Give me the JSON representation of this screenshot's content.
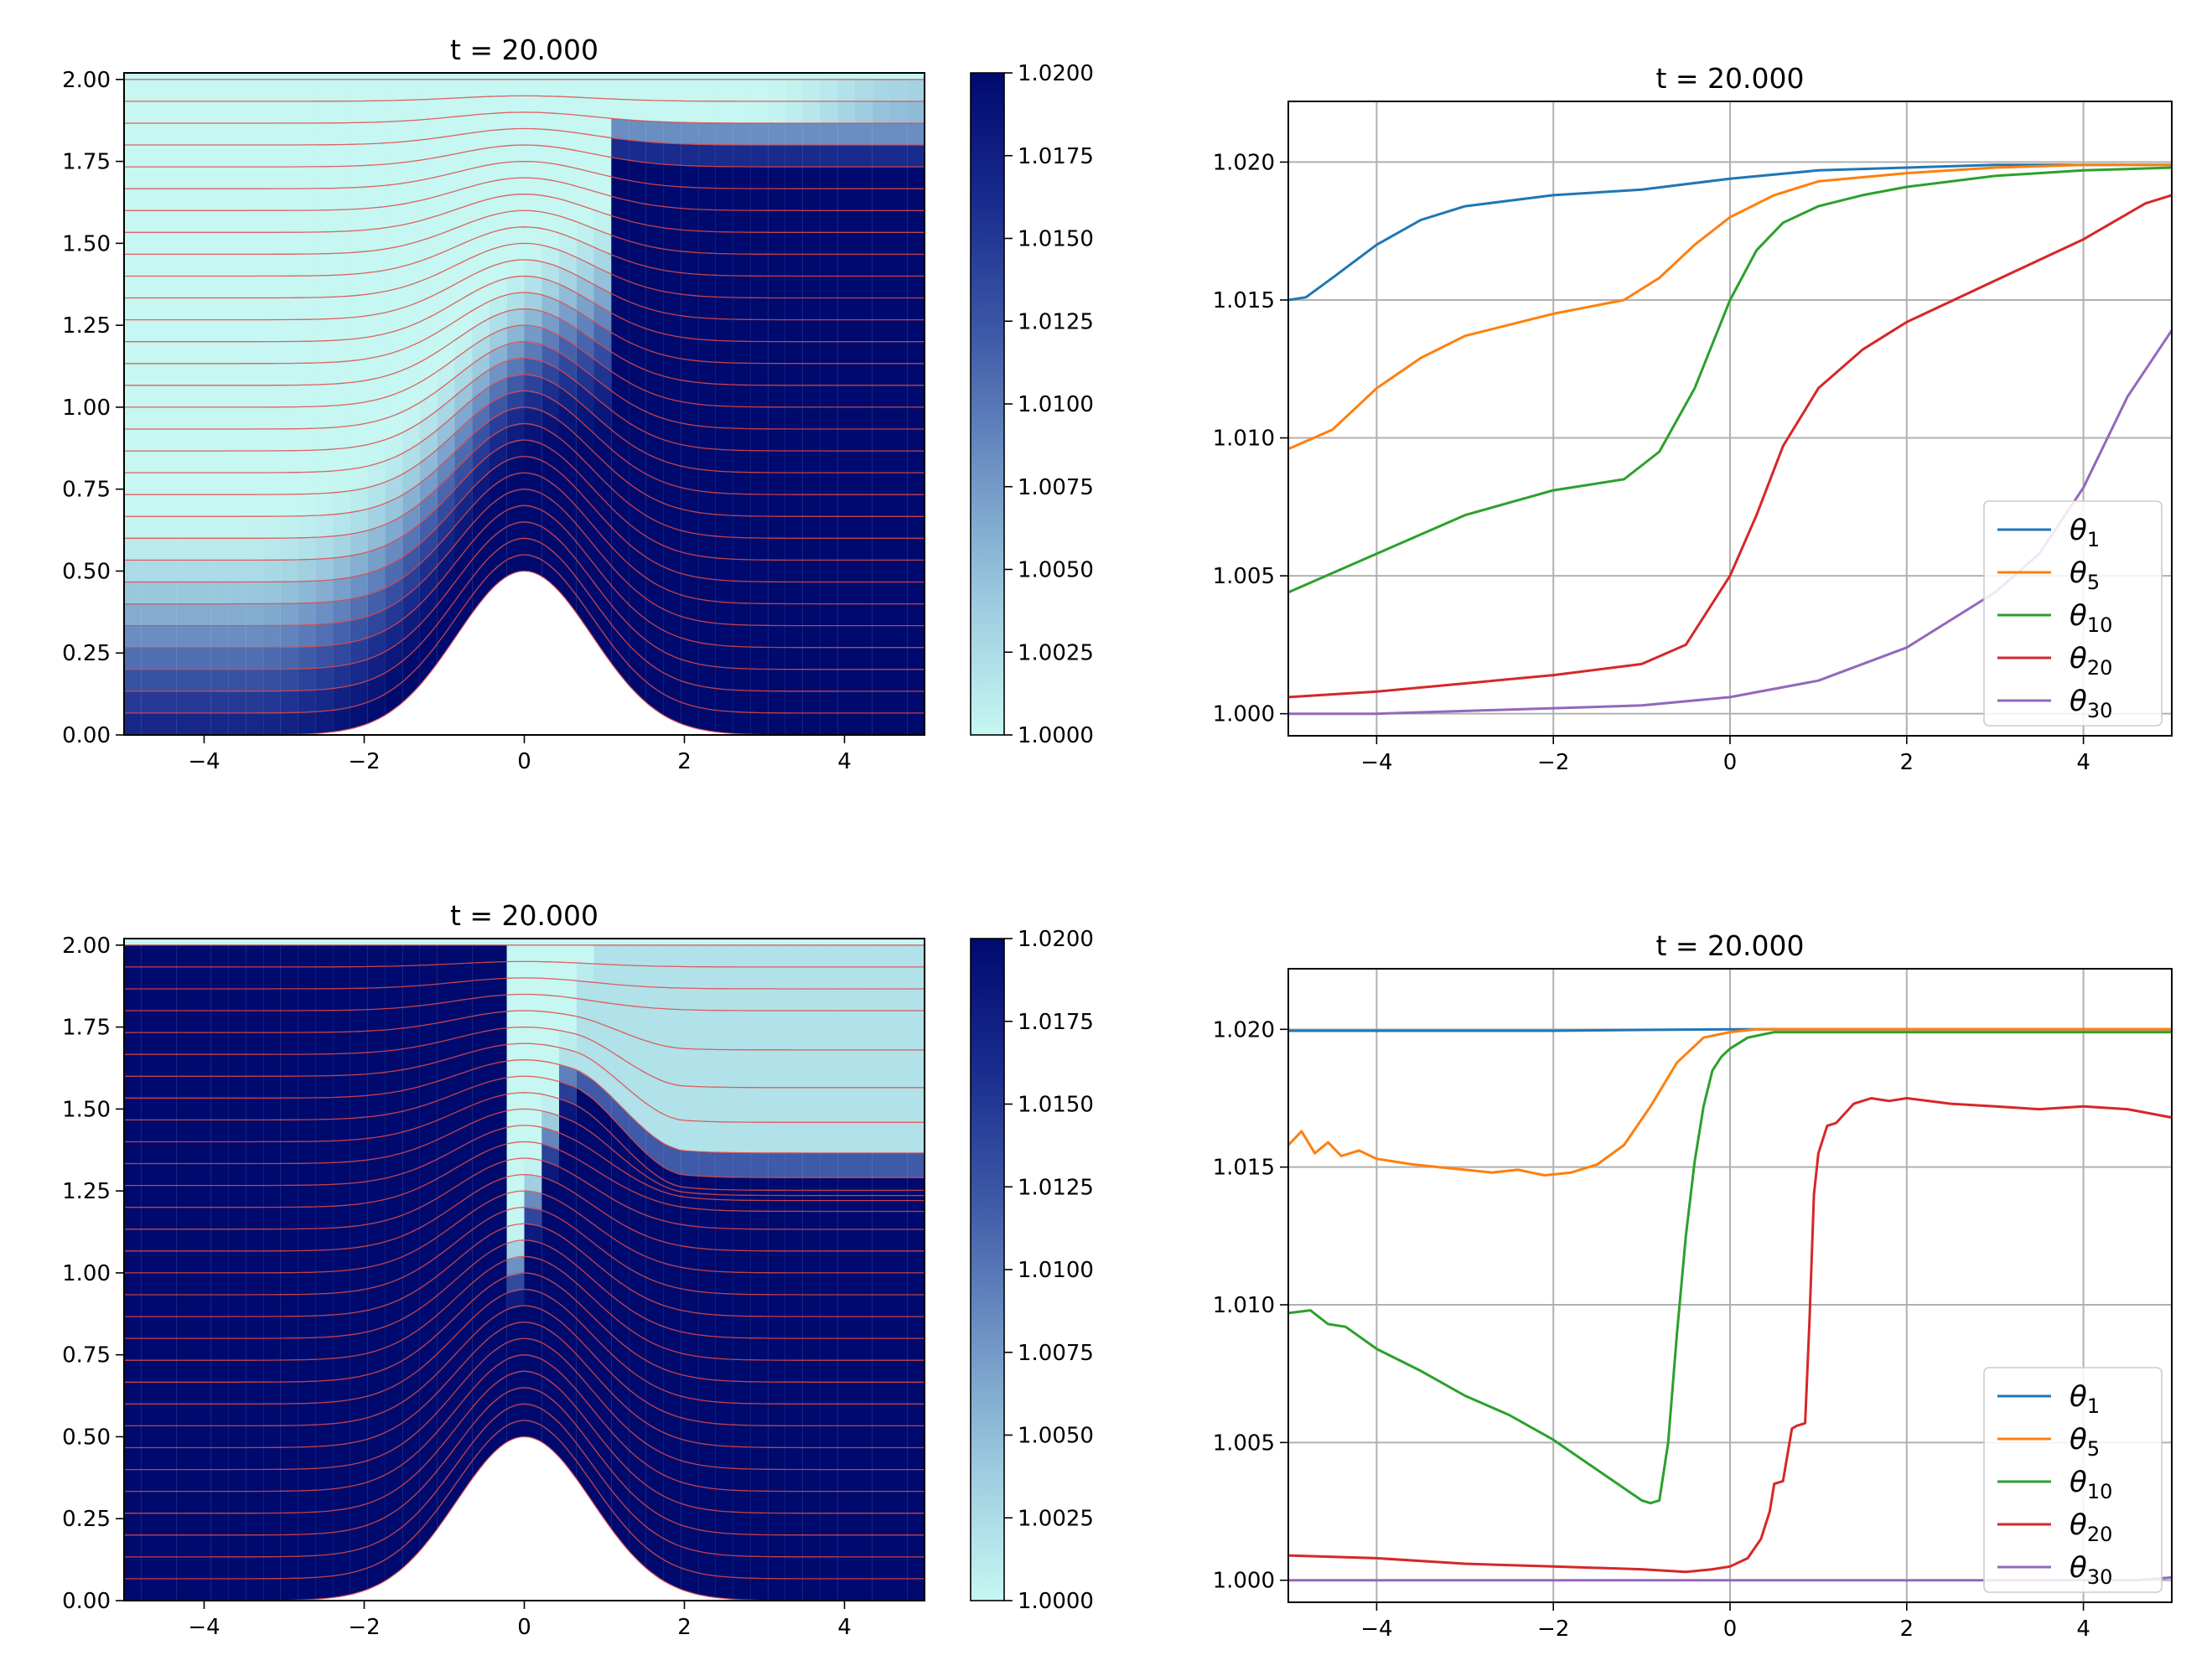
{
  "figure": {
    "layout": "2x2 grid"
  },
  "chart_data": [
    {
      "id": "field-top",
      "type": "heatmap",
      "title": "t = 20.000",
      "xlim": [
        -5,
        5
      ],
      "ylim": [
        0,
        2.02
      ],
      "xticks": [
        "−4",
        "−2",
        "0",
        "2",
        "4"
      ],
      "xtick_values": [
        -4,
        -2,
        0,
        2,
        4
      ],
      "yticks": [
        "0.00",
        "0.25",
        "0.50",
        "0.75",
        "1.00",
        "1.25",
        "1.50",
        "1.75",
        "2.00"
      ],
      "ytick_values": [
        0,
        0.25,
        0.5,
        0.75,
        1.0,
        1.25,
        1.5,
        1.75,
        2.0
      ],
      "colorbar": {
        "min": 1.0,
        "max": 1.02,
        "ticks": [
          "1.0000",
          "1.0025",
          "1.0050",
          "1.0075",
          "1.0100",
          "1.0125",
          "1.0150",
          "1.0175",
          "1.0200"
        ],
        "tick_values": [
          1.0,
          1.0025,
          1.005,
          1.0075,
          1.01,
          1.0125,
          1.015,
          1.0175,
          1.02
        ],
        "colormap": [
          "#c6f7f2",
          "#9ccbdf",
          "#6e93c4",
          "#3f5aa8",
          "#1a2d8e",
          "#000a6e"
        ]
      },
      "bump": {
        "height": 0.5,
        "width": 1.0
      },
      "layers": 30,
      "streamline_color": "#e04848",
      "ground_color": "#ffffff"
    },
    {
      "id": "profiles-top",
      "type": "line",
      "title": "t = 20.000",
      "xlim": [
        -5,
        5
      ],
      "ylim": [
        0.9992,
        1.0222
      ],
      "xticks": [
        "−4",
        "−2",
        "0",
        "2",
        "4"
      ],
      "xtick_values": [
        -4,
        -2,
        0,
        2,
        4
      ],
      "yticks": [
        "1.000",
        "1.005",
        "1.010",
        "1.015",
        "1.020"
      ],
      "ytick_values": [
        1.0,
        1.005,
        1.01,
        1.015,
        1.02
      ],
      "grid": true,
      "legend": {
        "position": "lower-right",
        "entries": [
          "θ",
          "θ",
          "θ",
          "θ",
          "θ"
        ],
        "subscripts": [
          "1",
          "5",
          "10",
          "20",
          "30"
        ]
      },
      "series": [
        {
          "name": "θ1",
          "color": "#1f77b4",
          "x": [
            -5,
            -4.8,
            -4.5,
            -4,
            -3.5,
            -3,
            -2,
            -1,
            0,
            1,
            2,
            3,
            4,
            5
          ],
          "y": [
            1.015,
            1.0151,
            1.0158,
            1.017,
            1.0179,
            1.0184,
            1.0188,
            1.019,
            1.0194,
            1.0197,
            1.0198,
            1.0199,
            1.0199,
            1.0199
          ]
        },
        {
          "name": "θ5",
          "color": "#ff7f0e",
          "x": [
            -5,
            -4.5,
            -4,
            -3.5,
            -3,
            -2,
            -1.2,
            -0.8,
            -0.4,
            0,
            0.5,
            1,
            2,
            3,
            4,
            5
          ],
          "y": [
            1.0096,
            1.0103,
            1.0118,
            1.0129,
            1.0137,
            1.0145,
            1.015,
            1.0158,
            1.017,
            1.018,
            1.0188,
            1.0193,
            1.0196,
            1.0198,
            1.0199,
            1.0199
          ]
        },
        {
          "name": "θ10",
          "color": "#2ca02c",
          "x": [
            -5,
            -4,
            -3,
            -2,
            -1.2,
            -0.8,
            -0.4,
            0,
            0.3,
            0.6,
            1,
            1.5,
            2,
            3,
            4,
            5
          ],
          "y": [
            1.0044,
            1.0058,
            1.0072,
            1.0081,
            1.0085,
            1.0095,
            1.0118,
            1.015,
            1.0168,
            1.0178,
            1.0184,
            1.0188,
            1.0191,
            1.0195,
            1.0197,
            1.0198
          ]
        },
        {
          "name": "θ20",
          "color": "#d62728",
          "x": [
            -5,
            -4,
            -3,
            -2,
            -1,
            -0.5,
            0,
            0.3,
            0.6,
            1,
            1.5,
            2,
            3,
            4,
            4.7,
            5
          ],
          "y": [
            1.0006,
            1.0008,
            1.0011,
            1.0014,
            1.0018,
            1.0025,
            1.005,
            1.0072,
            1.0097,
            1.0118,
            1.0132,
            1.0142,
            1.0157,
            1.0172,
            1.0185,
            1.0188
          ]
        },
        {
          "name": "θ30",
          "color": "#9467bd",
          "x": [
            -5,
            -4,
            -3,
            -2,
            -1,
            0,
            1,
            2,
            3,
            3.5,
            4,
            4.5,
            5
          ],
          "y": [
            1.0,
            1.0,
            1.0001,
            1.0002,
            1.0003,
            1.0006,
            1.0012,
            1.0024,
            1.0044,
            1.0058,
            1.0082,
            1.0115,
            1.0139
          ]
        }
      ]
    },
    {
      "id": "field-bottom",
      "type": "heatmap",
      "title": "t = 20.000",
      "xlim": [
        -5,
        5
      ],
      "ylim": [
        0,
        2.02
      ],
      "xticks": [
        "−4",
        "−2",
        "0",
        "2",
        "4"
      ],
      "xtick_values": [
        -4,
        -2,
        0,
        2,
        4
      ],
      "yticks": [
        "0.00",
        "0.25",
        "0.50",
        "0.75",
        "1.00",
        "1.25",
        "1.50",
        "1.75",
        "2.00"
      ],
      "ytick_values": [
        0,
        0.25,
        0.5,
        0.75,
        1.0,
        1.25,
        1.5,
        1.75,
        2.0
      ],
      "colorbar": {
        "min": 1.0,
        "max": 1.02,
        "ticks": [
          "1.0000",
          "1.0025",
          "1.0050",
          "1.0075",
          "1.0100",
          "1.0125",
          "1.0150",
          "1.0175",
          "1.0200"
        ],
        "tick_values": [
          1.0,
          1.0025,
          1.005,
          1.0075,
          1.01,
          1.0125,
          1.015,
          1.0175,
          1.02
        ],
        "colormap": [
          "#c6f7f2",
          "#9ccbdf",
          "#6e93c4",
          "#3f5aa8",
          "#1a2d8e",
          "#000a6e"
        ]
      },
      "bump": {
        "height": 0.5,
        "width": 1.0
      },
      "layers": 30,
      "streamline_color": "#e04848",
      "ground_color": "#ffffff"
    },
    {
      "id": "profiles-bottom",
      "type": "line",
      "title": "t = 20.000",
      "xlim": [
        -5,
        5
      ],
      "ylim": [
        0.9992,
        1.0222
      ],
      "xticks": [
        "−4",
        "−2",
        "0",
        "2",
        "4"
      ],
      "xtick_values": [
        -4,
        -2,
        0,
        2,
        4
      ],
      "yticks": [
        "1.000",
        "1.005",
        "1.010",
        "1.015",
        "1.020"
      ],
      "ytick_values": [
        1.0,
        1.005,
        1.01,
        1.015,
        1.02
      ],
      "grid": true,
      "legend": {
        "position": "lower-right",
        "entries": [
          "θ",
          "θ",
          "θ",
          "θ",
          "θ"
        ],
        "subscripts": [
          "1",
          "5",
          "10",
          "20",
          "30"
        ]
      },
      "series": [
        {
          "name": "θ1",
          "color": "#1f77b4",
          "x": [
            -5,
            -2,
            -1,
            0,
            5
          ],
          "y": [
            1.01995,
            1.01995,
            1.01998,
            1.02,
            1.02
          ]
        },
        {
          "name": "θ5",
          "color": "#ff7f0e",
          "x": [
            -5,
            -4.85,
            -4.7,
            -4.55,
            -4.4,
            -4.2,
            -4,
            -3.6,
            -3.3,
            -3,
            -2.7,
            -2.4,
            -2.1,
            -1.8,
            -1.5,
            -1.2,
            -0.9,
            -0.6,
            -0.3,
            0,
            0.3,
            0.6,
            1,
            2,
            3,
            4,
            5
          ],
          "y": [
            1.0158,
            1.0163,
            1.0155,
            1.0159,
            1.0154,
            1.0156,
            1.0153,
            1.0151,
            1.015,
            1.0149,
            1.0148,
            1.0149,
            1.0147,
            1.0148,
            1.0151,
            1.0158,
            1.0172,
            1.0188,
            1.0197,
            1.0199,
            1.02,
            1.02,
            1.02,
            1.02,
            1.02,
            1.02,
            1.02
          ]
        },
        {
          "name": "θ10",
          "color": "#2ca02c",
          "x": [
            -5,
            -4.75,
            -4.55,
            -4.35,
            -4,
            -3.5,
            -3,
            -2.5,
            -2,
            -1.5,
            -1,
            -0.9,
            -0.8,
            -0.7,
            -0.6,
            -0.5,
            -0.4,
            -0.3,
            -0.2,
            -0.1,
            0,
            0.2,
            0.5,
            1,
            2,
            3,
            4,
            5
          ],
          "y": [
            1.0097,
            1.0098,
            1.0093,
            1.0092,
            1.0084,
            1.0076,
            1.0067,
            1.006,
            1.0051,
            1.004,
            1.0029,
            1.0028,
            1.0029,
            1.005,
            1.009,
            1.0125,
            1.0152,
            1.0172,
            1.0185,
            1.019,
            1.0193,
            1.0197,
            1.0199,
            1.0199,
            1.0199,
            1.0199,
            1.0199,
            1.0199
          ]
        },
        {
          "name": "θ20",
          "color": "#d62728",
          "x": [
            -5,
            -4,
            -3,
            -2,
            -1,
            -0.5,
            -0.2,
            0,
            0.2,
            0.35,
            0.45,
            0.5,
            0.6,
            0.7,
            0.75,
            0.85,
            0.9,
            0.95,
            1.0,
            1.1,
            1.2,
            1.4,
            1.6,
            1.8,
            2.0,
            2.5,
            3,
            3.5,
            4,
            4.5,
            5
          ],
          "y": [
            1.0009,
            1.0008,
            1.0006,
            1.0005,
            1.0004,
            1.0003,
            1.0004,
            1.0005,
            1.0008,
            1.0015,
            1.0025,
            1.0035,
            1.0036,
            1.0055,
            1.0056,
            1.0057,
            1.0095,
            1.014,
            1.0155,
            1.0165,
            1.0166,
            1.0173,
            1.0175,
            1.0174,
            1.0175,
            1.0173,
            1.0172,
            1.0171,
            1.0172,
            1.0171,
            1.0168
          ]
        },
        {
          "name": "θ30",
          "color": "#9467bd",
          "x": [
            -5,
            0,
            4.6,
            5
          ],
          "y": [
            1.0,
            1.0,
            1.0,
            1.0001
          ]
        }
      ]
    }
  ]
}
